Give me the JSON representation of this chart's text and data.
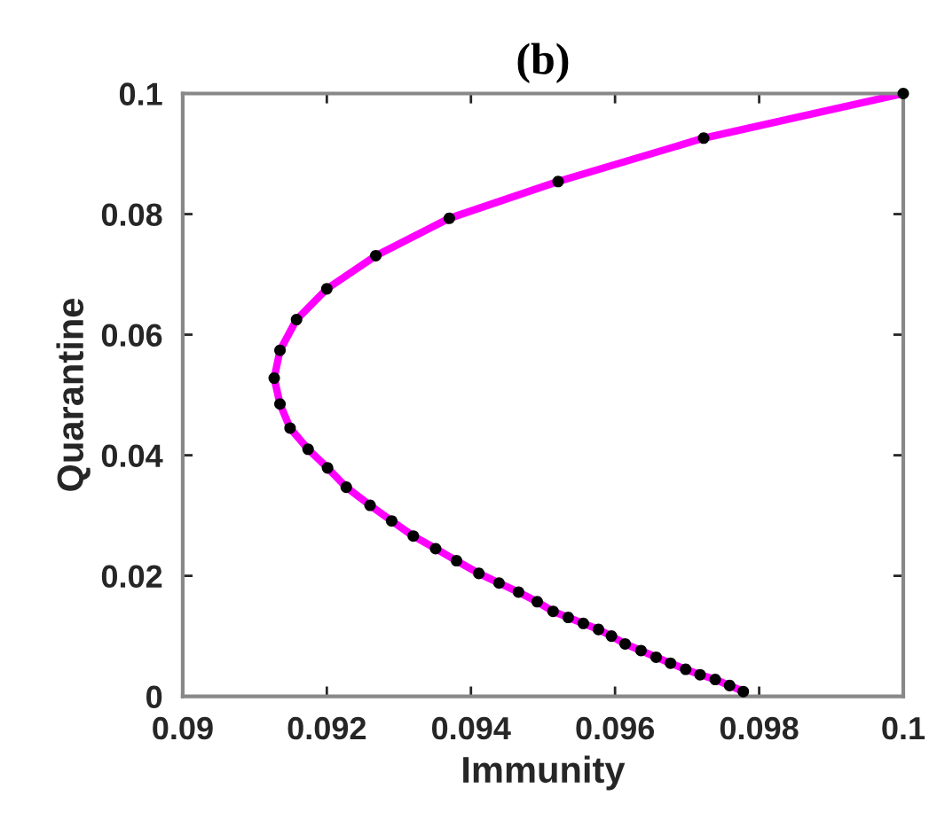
{
  "chart_data": {
    "type": "line",
    "title": "(b)",
    "xlabel": "Immunity",
    "ylabel": "Quarantine",
    "x": [
      0.1,
      0.09723,
      0.09521,
      0.0937,
      0.09268,
      0.092,
      0.09158,
      0.09135,
      0.09127,
      0.09135,
      0.09149,
      0.09174,
      0.09201,
      0.09227,
      0.0926,
      0.0929,
      0.0932,
      0.09351,
      0.0938,
      0.09411,
      0.09439,
      0.09466,
      0.09492,
      0.09514,
      0.09535,
      0.09556,
      0.09577,
      0.09595,
      0.09614,
      0.09636,
      0.09657,
      0.09677,
      0.09698,
      0.09718,
      0.09739,
      0.09759,
      0.09778
    ],
    "series": [
      {
        "color": "#ff00ff",
        "marker": "none",
        "values": [
          0.1,
          0.0926,
          0.0854,
          0.0793,
          0.0731,
          0.0676,
          0.0625,
          0.0574,
          0.0528,
          0.0485,
          0.0445,
          0.041,
          0.0379,
          0.0347,
          0.0317,
          0.0291,
          0.0266,
          0.0245,
          0.0225,
          0.0204,
          0.0188,
          0.0173,
          0.0157,
          0.0141,
          0.0131,
          0.0121,
          0.0111,
          0.01,
          0.0087,
          0.0076,
          0.0065,
          0.0055,
          0.0045,
          0.0036,
          0.0028,
          0.0018,
          0.0008
        ]
      },
      {
        "type": "scatter",
        "color": "#000000",
        "marker": "circle",
        "values": [
          0.1,
          0.0926,
          0.0854,
          0.0793,
          0.0731,
          0.0676,
          0.0625,
          0.0574,
          0.0528,
          0.0485,
          0.0445,
          0.041,
          0.0379,
          0.0347,
          0.0317,
          0.0291,
          0.0266,
          0.0245,
          0.0225,
          0.0204,
          0.0188,
          0.0173,
          0.0157,
          0.0141,
          0.0131,
          0.0121,
          0.0111,
          0.01,
          0.0087,
          0.0076,
          0.0065,
          0.0055,
          0.0045,
          0.0036,
          0.0028,
          0.0018,
          0.0008
        ]
      }
    ],
    "xlim": [
      0.09,
      0.1
    ],
    "xticks": [
      0.09,
      0.092,
      0.094,
      0.096,
      0.098,
      0.1
    ],
    "ylim": [
      0,
      0.1
    ],
    "yticks": [
      0,
      0.02,
      0.04,
      0.06,
      0.08,
      0.1
    ],
    "grid": false,
    "legend": false
  }
}
